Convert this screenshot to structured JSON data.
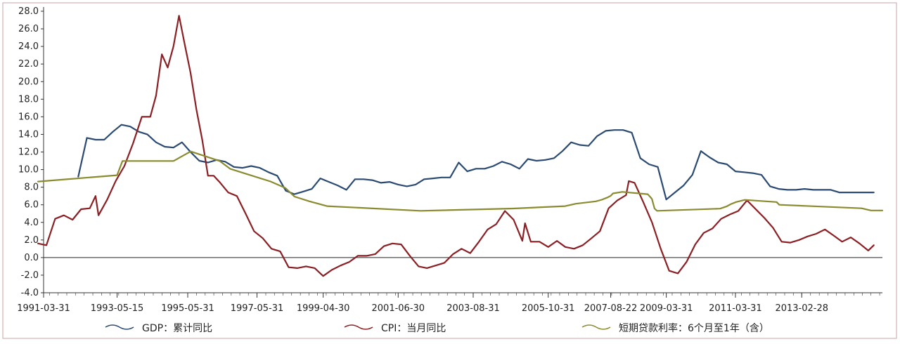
{
  "chart_data": {
    "type": "line",
    "ylim": [
      -4.0,
      28.0
    ],
    "y_ticks": [
      "-4.0",
      "-2.0",
      "0.0",
      "2.0",
      "4.0",
      "6.0",
      "8.0",
      "10.0",
      "12.0",
      "14.0",
      "16.0",
      "18.0",
      "20.0",
      "22.0",
      "24.0",
      "26.0",
      "28.0"
    ],
    "x_range": [
      "1991-03-31",
      "2015-06-30"
    ],
    "x_tick_labels": [
      "1991-03-31",
      "1993-05-15",
      "1995-05-31",
      "1997-05-31",
      "1999-04-30",
      "2001-06-30",
      "2003-08-31",
      "2005-10-31",
      "2007-08-22",
      "2009-03-31",
      "2011-03-31",
      "2013-02-28"
    ],
    "legend": [
      "GDP：累计同比",
      "CPI：当月同比",
      "短期贷款利率：6个月至1年（含）"
    ],
    "legend_position": "bottom",
    "grid": false,
    "colors": {
      "gdp": "#2b4a72",
      "cpi": "#8b1f24",
      "rate": "#8a8a2e",
      "axis": "#333333"
    },
    "series": [
      {
        "name": "GDP：累计同比",
        "color": "#2b4a72",
        "points": [
          [
            "1992-03-31",
            9.2
          ],
          [
            "1992-06-30",
            13.6
          ],
          [
            "1992-09-30",
            13.4
          ],
          [
            "1992-12-31",
            13.4
          ],
          [
            "1993-03-31",
            14.3
          ],
          [
            "1993-06-30",
            15.1
          ],
          [
            "1993-09-30",
            14.9
          ],
          [
            "1993-12-31",
            14.3
          ],
          [
            "1994-03-31",
            14.0
          ],
          [
            "1994-06-30",
            13.1
          ],
          [
            "1994-09-30",
            12.6
          ],
          [
            "1994-12-31",
            12.5
          ],
          [
            "1995-03-31",
            13.1
          ],
          [
            "1995-06-30",
            12.0
          ],
          [
            "1995-09-30",
            11.0
          ],
          [
            "1995-12-31",
            10.8
          ],
          [
            "1996-03-31",
            11.1
          ],
          [
            "1996-06-30",
            10.9
          ],
          [
            "1996-09-30",
            10.3
          ],
          [
            "1996-12-31",
            10.2
          ],
          [
            "1997-03-31",
            10.4
          ],
          [
            "1997-06-30",
            10.2
          ],
          [
            "1997-09-30",
            9.7
          ],
          [
            "1997-12-31",
            9.3
          ],
          [
            "1998-03-31",
            7.6
          ],
          [
            "1998-06-30",
            7.2
          ],
          [
            "1998-09-30",
            7.5
          ],
          [
            "1998-12-31",
            7.8
          ],
          [
            "1999-03-31",
            9.0
          ],
          [
            "1999-06-30",
            8.6
          ],
          [
            "1999-09-30",
            8.2
          ],
          [
            "1999-12-31",
            7.7
          ],
          [
            "2000-03-31",
            8.9
          ],
          [
            "2000-06-30",
            8.9
          ],
          [
            "2000-09-30",
            8.8
          ],
          [
            "2000-12-31",
            8.5
          ],
          [
            "2001-03-31",
            8.6
          ],
          [
            "2001-06-30",
            8.3
          ],
          [
            "2001-09-30",
            8.1
          ],
          [
            "2001-12-31",
            8.3
          ],
          [
            "2002-03-31",
            8.9
          ],
          [
            "2002-06-30",
            9.0
          ],
          [
            "2002-09-30",
            9.1
          ],
          [
            "2002-12-31",
            9.1
          ],
          [
            "2003-03-31",
            10.8
          ],
          [
            "2003-06-30",
            9.8
          ],
          [
            "2003-09-30",
            10.1
          ],
          [
            "2003-12-31",
            10.1
          ],
          [
            "2004-03-31",
            10.4
          ],
          [
            "2004-06-30",
            10.9
          ],
          [
            "2004-09-30",
            10.6
          ],
          [
            "2004-12-31",
            10.1
          ],
          [
            "2005-03-31",
            11.2
          ],
          [
            "2005-06-30",
            11.0
          ],
          [
            "2005-09-30",
            11.1
          ],
          [
            "2005-12-31",
            11.3
          ],
          [
            "2006-03-31",
            12.1
          ],
          [
            "2006-06-30",
            13.1
          ],
          [
            "2006-09-30",
            12.8
          ],
          [
            "2006-12-31",
            12.7
          ],
          [
            "2007-03-31",
            13.8
          ],
          [
            "2007-06-30",
            14.4
          ],
          [
            "2007-09-30",
            14.5
          ],
          [
            "2007-12-31",
            14.5
          ],
          [
            "2008-03-31",
            14.2
          ],
          [
            "2008-06-30",
            11.3
          ],
          [
            "2008-09-30",
            10.6
          ],
          [
            "2008-12-31",
            10.3
          ],
          [
            "2009-03-31",
            6.6
          ],
          [
            "2009-06-30",
            7.4
          ],
          [
            "2009-09-30",
            8.2
          ],
          [
            "2009-12-31",
            9.4
          ],
          [
            "2010-03-31",
            12.1
          ],
          [
            "2010-06-30",
            11.4
          ],
          [
            "2010-09-30",
            10.8
          ],
          [
            "2010-12-31",
            10.6
          ],
          [
            "2011-03-31",
            9.8
          ],
          [
            "2011-06-30",
            9.7
          ],
          [
            "2011-09-30",
            9.6
          ],
          [
            "2011-12-31",
            9.4
          ],
          [
            "2012-03-31",
            8.1
          ],
          [
            "2012-06-30",
            7.8
          ],
          [
            "2012-09-30",
            7.7
          ],
          [
            "2012-12-31",
            7.7
          ],
          [
            "2013-03-31",
            7.8
          ],
          [
            "2013-06-30",
            7.7
          ],
          [
            "2013-09-30",
            7.7
          ],
          [
            "2013-12-31",
            7.7
          ],
          [
            "2014-03-31",
            7.4
          ],
          [
            "2014-06-30",
            7.4
          ],
          [
            "2014-09-30",
            7.4
          ],
          [
            "2014-12-31",
            7.4
          ],
          [
            "2015-03-31",
            7.4
          ]
        ]
      },
      {
        "name": "CPI：当月同比",
        "color": "#8b1f24",
        "points": [
          [
            "1991-01-31",
            1.6
          ],
          [
            "1991-04-30",
            1.4
          ],
          [
            "1991-07-31",
            4.4
          ],
          [
            "1991-10-31",
            4.8
          ],
          [
            "1992-01-31",
            4.3
          ],
          [
            "1992-04-30",
            5.5
          ],
          [
            "1992-07-31",
            5.6
          ],
          [
            "1992-09-30",
            7.0
          ],
          [
            "1992-10-31",
            4.8
          ],
          [
            "1993-01-31",
            6.6
          ],
          [
            "1993-04-30",
            8.7
          ],
          [
            "1993-07-31",
            10.4
          ],
          [
            "1993-10-31",
            13.0
          ],
          [
            "1994-01-31",
            16.0
          ],
          [
            "1994-04-30",
            16.0
          ],
          [
            "1994-06-30",
            18.4
          ],
          [
            "1994-08-31",
            23.1
          ],
          [
            "1994-10-31",
            21.6
          ],
          [
            "1994-12-31",
            24.0
          ],
          [
            "1995-02-28",
            27.5
          ],
          [
            "1995-04-30",
            24.2
          ],
          [
            "1995-06-30",
            21.0
          ],
          [
            "1995-08-31",
            16.8
          ],
          [
            "1995-10-31",
            13.4
          ],
          [
            "1995-12-31",
            9.3
          ],
          [
            "1996-02-29",
            9.3
          ],
          [
            "1996-04-30",
            8.6
          ],
          [
            "1996-07-31",
            7.4
          ],
          [
            "1996-10-31",
            7.0
          ],
          [
            "1997-01-31",
            5.0
          ],
          [
            "1997-04-30",
            3.0
          ],
          [
            "1997-07-31",
            2.2
          ],
          [
            "1997-10-31",
            1.0
          ],
          [
            "1998-01-31",
            0.7
          ],
          [
            "1998-04-30",
            -1.1
          ],
          [
            "1998-07-31",
            -1.2
          ],
          [
            "1998-10-31",
            -1.0
          ],
          [
            "1999-01-31",
            -1.2
          ],
          [
            "1999-04-30",
            -2.1
          ],
          [
            "1999-07-31",
            -1.4
          ],
          [
            "1999-10-31",
            -0.9
          ],
          [
            "2000-01-31",
            -0.5
          ],
          [
            "2000-04-30",
            0.2
          ],
          [
            "2000-07-31",
            0.2
          ],
          [
            "2000-10-31",
            0.4
          ],
          [
            "2001-01-31",
            1.3
          ],
          [
            "2001-04-30",
            1.6
          ],
          [
            "2001-07-31",
            1.5
          ],
          [
            "2001-10-31",
            0.2
          ],
          [
            "2002-01-31",
            -1.0
          ],
          [
            "2002-04-30",
            -1.2
          ],
          [
            "2002-07-31",
            -0.9
          ],
          [
            "2002-10-31",
            -0.6
          ],
          [
            "2003-01-31",
            0.4
          ],
          [
            "2003-04-30",
            1.0
          ],
          [
            "2003-07-31",
            0.5
          ],
          [
            "2003-10-31",
            1.8
          ],
          [
            "2004-01-31",
            3.2
          ],
          [
            "2004-04-30",
            3.8
          ],
          [
            "2004-07-31",
            5.3
          ],
          [
            "2004-10-31",
            4.3
          ],
          [
            "2005-01-31",
            1.9
          ],
          [
            "2005-02-28",
            3.9
          ],
          [
            "2005-04-30",
            1.8
          ],
          [
            "2005-07-31",
            1.8
          ],
          [
            "2005-10-31",
            1.2
          ],
          [
            "2006-01-31",
            1.9
          ],
          [
            "2006-04-30",
            1.2
          ],
          [
            "2006-07-31",
            1.0
          ],
          [
            "2006-10-31",
            1.4
          ],
          [
            "2007-01-31",
            2.2
          ],
          [
            "2007-04-30",
            3.0
          ],
          [
            "2007-07-31",
            5.6
          ],
          [
            "2007-10-31",
            6.5
          ],
          [
            "2008-01-31",
            7.1
          ],
          [
            "2008-02-29",
            8.7
          ],
          [
            "2008-04-30",
            8.5
          ],
          [
            "2008-07-31",
            6.3
          ],
          [
            "2008-10-31",
            4.0
          ],
          [
            "2009-01-31",
            1.0
          ],
          [
            "2009-04-30",
            -1.5
          ],
          [
            "2009-07-31",
            -1.8
          ],
          [
            "2009-10-31",
            -0.5
          ],
          [
            "2010-01-31",
            1.5
          ],
          [
            "2010-04-30",
            2.8
          ],
          [
            "2010-07-31",
            3.3
          ],
          [
            "2010-10-31",
            4.4
          ],
          [
            "2011-01-31",
            4.9
          ],
          [
            "2011-04-30",
            5.3
          ],
          [
            "2011-07-31",
            6.5
          ],
          [
            "2011-10-31",
            5.5
          ],
          [
            "2012-01-31",
            4.5
          ],
          [
            "2012-04-30",
            3.4
          ],
          [
            "2012-07-31",
            1.8
          ],
          [
            "2012-10-31",
            1.7
          ],
          [
            "2013-01-31",
            2.0
          ],
          [
            "2013-04-30",
            2.4
          ],
          [
            "2013-07-31",
            2.7
          ],
          [
            "2013-10-31",
            3.2
          ],
          [
            "2014-01-31",
            2.5
          ],
          [
            "2014-04-30",
            1.8
          ],
          [
            "2014-07-31",
            2.3
          ],
          [
            "2014-10-31",
            1.6
          ],
          [
            "2015-01-31",
            0.8
          ],
          [
            "2015-03-31",
            1.4
          ]
        ]
      },
      {
        "name": "短期贷款利率：6个月至1年（含）",
        "color": "#8a8a2e",
        "points": [
          [
            "1991-01-31",
            8.64
          ],
          [
            "1993-05-15",
            9.36
          ],
          [
            "1993-07-11",
            10.98
          ],
          [
            "1995-01-01",
            10.98
          ],
          [
            "1995-07-01",
            12.06
          ],
          [
            "1996-05-01",
            10.98
          ],
          [
            "1996-08-23",
            10.08
          ],
          [
            "1997-10-23",
            8.64
          ],
          [
            "1998-03-25",
            7.92
          ],
          [
            "1998-07-01",
            6.93
          ],
          [
            "1998-12-07",
            6.39
          ],
          [
            "1999-06-10",
            5.85
          ],
          [
            "2002-02-21",
            5.31
          ],
          [
            "2004-10-29",
            5.58
          ],
          [
            "2006-04-28",
            5.85
          ],
          [
            "2006-08-19",
            6.12
          ],
          [
            "2007-03-18",
            6.39
          ],
          [
            "2007-05-19",
            6.57
          ],
          [
            "2007-07-21",
            6.84
          ],
          [
            "2007-08-22",
            7.02
          ],
          [
            "2007-09-15",
            7.29
          ],
          [
            "2007-12-21",
            7.47
          ],
          [
            "2008-09-16",
            7.2
          ],
          [
            "2008-10-09",
            6.93
          ],
          [
            "2008-10-30",
            6.66
          ],
          [
            "2008-11-27",
            5.58
          ],
          [
            "2008-12-23",
            5.31
          ],
          [
            "2010-10-20",
            5.56
          ],
          [
            "2010-12-26",
            5.81
          ],
          [
            "2011-02-09",
            6.06
          ],
          [
            "2011-04-06",
            6.31
          ],
          [
            "2011-07-07",
            6.56
          ],
          [
            "2012-06-08",
            6.31
          ],
          [
            "2012-07-06",
            6.0
          ],
          [
            "2014-11-22",
            5.6
          ],
          [
            "2015-03-01",
            5.35
          ],
          [
            "2015-06-30",
            5.35
          ]
        ]
      }
    ]
  }
}
